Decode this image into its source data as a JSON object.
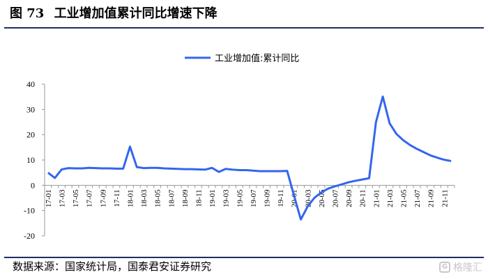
{
  "figure": {
    "number": "图 73",
    "title": "工业增加值累计同比增速下降"
  },
  "source_text": "数据来源：国家统计局，国泰君安证券研究",
  "watermark": {
    "icon": "G",
    "text": "格隆汇"
  },
  "colors": {
    "series": "#3366ee",
    "rule": "#1c2e66",
    "axis": "#999999"
  },
  "chart_data": {
    "type": "line",
    "legend_position": "top-center",
    "grid": false,
    "ylim": [
      -20,
      40
    ],
    "yticks": [
      40,
      30,
      20,
      10,
      0,
      -10,
      -20
    ],
    "xtick_labels": [
      "17-01",
      "17-03",
      "17-05",
      "17-07",
      "17-09",
      "17-11",
      "18-01",
      "18-03",
      "18-05",
      "18-07",
      "18-09",
      "18-11",
      "19-01",
      "19-03",
      "19-05",
      "19-07",
      "19-09",
      "19-11",
      "20-01",
      "20-03",
      "20-05",
      "20-07",
      "20-09",
      "20-11",
      "21-01",
      "21-03",
      "21-05",
      "21-07",
      "21-09",
      "21-11"
    ],
    "x": [
      "17-01",
      "17-02",
      "17-03",
      "17-04",
      "17-05",
      "17-06",
      "17-07",
      "17-08",
      "17-09",
      "17-10",
      "17-11",
      "17-12",
      "18-01",
      "18-02",
      "18-03",
      "18-04",
      "18-05",
      "18-06",
      "18-07",
      "18-08",
      "18-09",
      "18-10",
      "18-11",
      "18-12",
      "19-01",
      "19-02",
      "19-03",
      "19-04",
      "19-05",
      "19-06",
      "19-07",
      "19-08",
      "19-09",
      "19-10",
      "19-11",
      "19-12",
      "20-01",
      "20-02",
      "20-03",
      "20-04",
      "20-05",
      "20-06",
      "20-07",
      "20-08",
      "20-09",
      "20-10",
      "20-11",
      "20-12",
      "21-01",
      "21-02",
      "21-03",
      "21-04",
      "21-05",
      "21-06",
      "21-07",
      "21-08",
      "21-09",
      "21-10",
      "21-11",
      "21-12"
    ],
    "series": [
      {
        "name": "工业增加值:累计同比",
        "values": [
          5.0,
          2.9,
          6.3,
          6.8,
          6.7,
          6.7,
          6.9,
          6.8,
          6.7,
          6.7,
          6.6,
          6.6,
          15.3,
          7.2,
          6.8,
          6.9,
          6.9,
          6.7,
          6.6,
          6.5,
          6.4,
          6.4,
          6.3,
          6.2,
          6.9,
          5.3,
          6.5,
          6.2,
          6.0,
          6.0,
          5.8,
          5.6,
          5.6,
          5.6,
          5.6,
          5.7,
          -4.0,
          -13.5,
          -8.4,
          -4.9,
          -2.8,
          -1.3,
          -0.4,
          0.4,
          1.2,
          1.8,
          2.3,
          2.8,
          25.0,
          35.1,
          24.5,
          20.3,
          17.8,
          15.9,
          14.4,
          13.1,
          11.8,
          10.9,
          10.1,
          9.6
        ]
      }
    ]
  }
}
